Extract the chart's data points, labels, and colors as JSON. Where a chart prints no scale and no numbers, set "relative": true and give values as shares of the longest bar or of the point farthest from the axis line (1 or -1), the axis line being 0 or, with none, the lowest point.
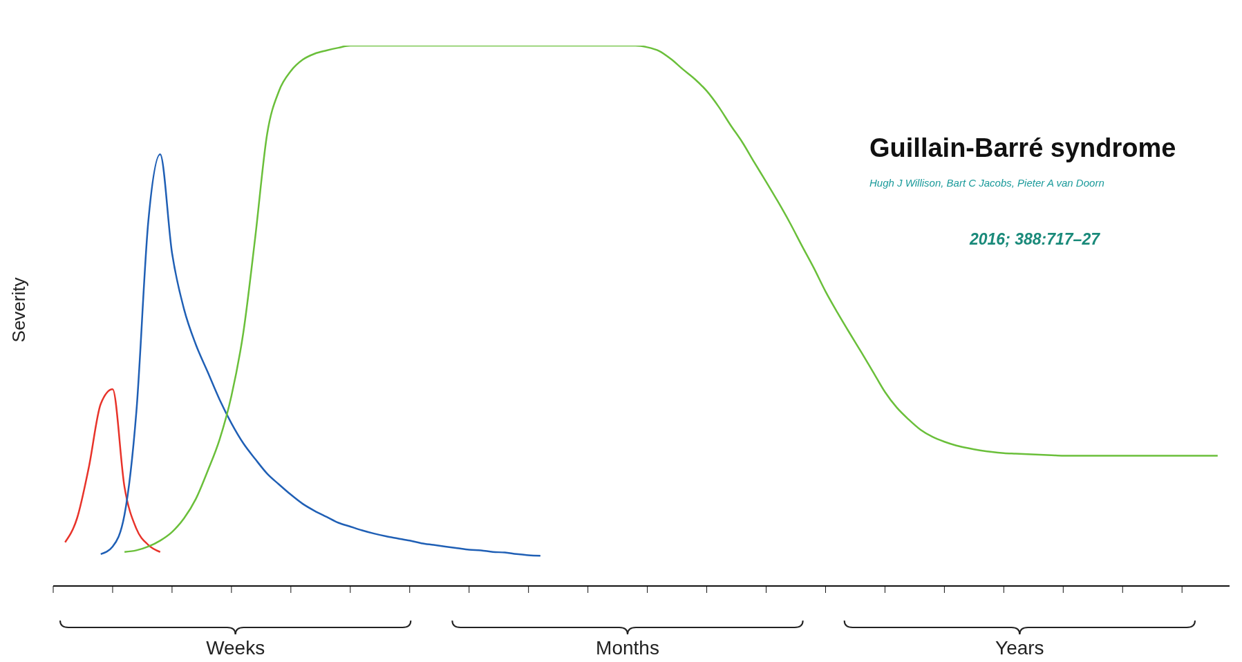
{
  "chart_data": {
    "type": "line",
    "relative": true,
    "title": "Guillain-Barré syndrome",
    "subtitle": "Hugh J Willison, Bart C Jacobs, Pieter A van Doorn",
    "ylabel": "Severity",
    "annotations": [
      "2016; 388:717–27",
      "Weeks",
      "Months",
      "Years"
    ],
    "categories": [
      null,
      null,
      null,
      null,
      null,
      null,
      null,
      null,
      null,
      null,
      null,
      null,
      null,
      null,
      null,
      null,
      null,
      null,
      null,
      null,
      null,
      null,
      null,
      null,
      null,
      null,
      null,
      null,
      null,
      null,
      null,
      null,
      null,
      null,
      null,
      null,
      null,
      null,
      null,
      null,
      null,
      null,
      null,
      null,
      null,
      null,
      null,
      null,
      null,
      null,
      null,
      null,
      null,
      null,
      null,
      null,
      null,
      null,
      null,
      null,
      null,
      null,
      null,
      null,
      null,
      null,
      null,
      null,
      null,
      null,
      null,
      null,
      null,
      null,
      null,
      null,
      null,
      null,
      null,
      null,
      null,
      null,
      null,
      null,
      null,
      null,
      null,
      null,
      null,
      null,
      null,
      null,
      null,
      null,
      null,
      null,
      null,
      null,
      null,
      null
    ],
    "series": [
      {
        "color": "#e8332a",
        "values": [
          null,
          0.081,
          0.125,
          0.22,
          0.337,
          0.364,
          0.183,
          0.106,
          0.076,
          0.063,
          null,
          null,
          null,
          null,
          null,
          null,
          null,
          null,
          null,
          null,
          null,
          null,
          null,
          null,
          null,
          null,
          null,
          null,
          null,
          null,
          null,
          null,
          null,
          null,
          null,
          null,
          null,
          null,
          null,
          null,
          null,
          null,
          null,
          null,
          null,
          null,
          null,
          null,
          null,
          null,
          null,
          null,
          null,
          null,
          null,
          null,
          null,
          null,
          null,
          null,
          null,
          null,
          null,
          null,
          null,
          null,
          null,
          null,
          null,
          null,
          null,
          null,
          null,
          null,
          null,
          null,
          null,
          null,
          null,
          null,
          null,
          null,
          null,
          null,
          null,
          null,
          null,
          null,
          null,
          null,
          null,
          null,
          null,
          null,
          null,
          null,
          null,
          null,
          null,
          null
        ]
      },
      {
        "color": "#1f5fb5",
        "values": [
          null,
          null,
          null,
          null,
          0.059,
          0.073,
          0.132,
          0.323,
          0.674,
          0.799,
          0.616,
          0.513,
          0.447,
          0.396,
          0.345,
          0.301,
          0.264,
          0.235,
          0.208,
          0.188,
          0.169,
          0.152,
          0.139,
          0.128,
          0.117,
          0.11,
          0.103,
          0.097,
          0.092,
          0.088,
          0.084,
          0.079,
          0.076,
          0.073,
          0.07,
          0.067,
          0.066,
          0.063,
          0.062,
          0.059,
          0.057,
          0.056,
          null,
          null,
          null,
          null,
          null,
          null,
          null,
          null,
          null,
          null,
          null,
          null,
          null,
          null,
          null,
          null,
          null,
          null,
          null,
          null,
          null,
          null,
          null,
          null,
          null,
          null,
          null,
          null,
          null,
          null,
          null,
          null,
          null,
          null,
          null,
          null,
          null,
          null,
          null,
          null,
          null,
          null,
          null,
          null,
          null,
          null,
          null,
          null,
          null,
          null,
          null,
          null,
          null,
          null,
          null,
          null,
          null,
          null
        ]
      },
      {
        "color": "#6abf3a",
        "values": [
          null,
          null,
          null,
          null,
          null,
          null,
          0.063,
          0.066,
          0.073,
          0.084,
          0.1,
          0.125,
          0.161,
          0.213,
          0.271,
          0.352,
          0.469,
          0.645,
          0.836,
          0.916,
          0.953,
          0.974,
          0.985,
          0.991,
          0.996,
          1,
          1,
          1,
          1,
          1,
          1,
          1,
          1,
          1,
          1,
          1,
          1,
          1,
          1,
          1,
          1,
          1,
          1,
          1,
          1,
          1,
          1,
          1,
          1,
          1,
          0.997,
          0.99,
          0.975,
          0.956,
          0.938,
          0.916,
          0.887,
          0.853,
          0.821,
          0.784,
          0.748,
          0.711,
          0.672,
          0.63,
          0.589,
          0.545,
          0.506,
          0.469,
          0.433,
          0.396,
          0.359,
          0.33,
          0.308,
          0.289,
          0.276,
          0.267,
          0.26,
          0.255,
          0.251,
          0.248,
          0.246,
          0.245,
          0.244,
          0.243,
          0.242,
          0.241,
          0.241,
          0.241,
          0.241,
          0.241,
          0.241,
          0.241,
          0.241,
          0.241,
          0.241,
          0.241,
          0.241,
          0.241,
          0.241,
          null
        ]
      }
    ]
  }
}
